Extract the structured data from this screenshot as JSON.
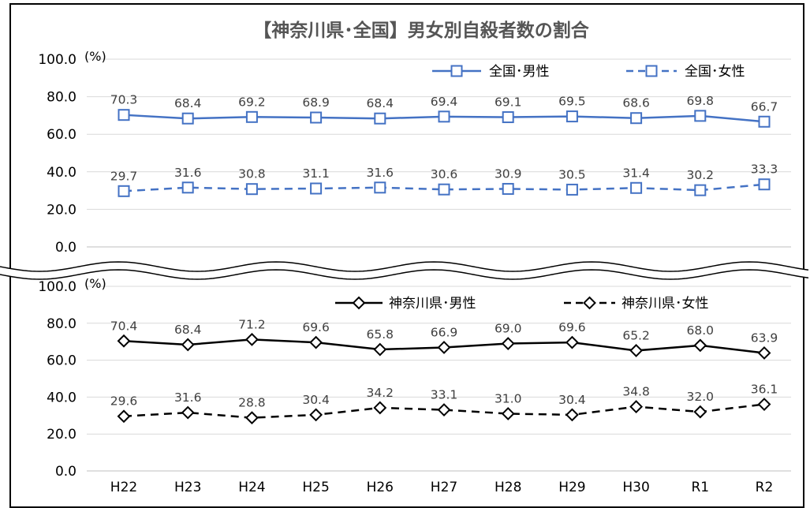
{
  "chart_data": {
    "type": "line",
    "title": "【神奈川県･全国】男女別自殺者数の割合",
    "categories": [
      "H22",
      "H23",
      "H24",
      "H25",
      "H26",
      "H27",
      "H28",
      "H29",
      "H30",
      "R1",
      "R2"
    ],
    "panels": [
      {
        "unit": "(%)",
        "ylim": [
          0,
          100
        ],
        "yticks": [
          "100.0",
          "80.0",
          "60.0",
          "40.0",
          "20.0",
          "0.0"
        ],
        "series": [
          {
            "name": "全国･男性",
            "color": "#4472C4",
            "dash": false,
            "marker": "square",
            "values": [
              70.3,
              68.4,
              69.2,
              68.9,
              68.4,
              69.4,
              69.1,
              69.5,
              68.6,
              69.8,
              66.7
            ],
            "labels": [
              "70.3",
              "68.4",
              "69.2",
              "68.9",
              "68.4",
              "69.4",
              "69.1",
              "69.5",
              "68.6",
              "69.8",
              "66.7"
            ]
          },
          {
            "name": "全国･女性",
            "color": "#4472C4",
            "dash": true,
            "marker": "square",
            "values": [
              29.7,
              31.6,
              30.8,
              31.1,
              31.6,
              30.6,
              30.9,
              30.5,
              31.4,
              30.2,
              33.3
            ],
            "labels": [
              "29.7",
              "31.6",
              "30.8",
              "31.1",
              "31.6",
              "30.6",
              "30.9",
              "30.5",
              "31.4",
              "30.2",
              "33.3"
            ]
          }
        ]
      },
      {
        "unit": "(%)",
        "ylim": [
          0,
          100
        ],
        "yticks": [
          "100.0",
          "80.0",
          "60.0",
          "40.0",
          "20.0",
          "0.0"
        ],
        "series": [
          {
            "name": "神奈川県･男性",
            "color": "#000000",
            "dash": false,
            "marker": "diamond",
            "values": [
              70.4,
              68.4,
              71.2,
              69.6,
              65.8,
              66.9,
              69.0,
              69.6,
              65.2,
              68.0,
              63.9
            ],
            "labels": [
              "70.4",
              "68.4",
              "71.2",
              "69.6",
              "65.8",
              "66.9",
              "69.0",
              "69.6",
              "65.2",
              "68.0",
              "63.9"
            ]
          },
          {
            "name": "神奈川県･女性",
            "color": "#000000",
            "dash": true,
            "marker": "diamond",
            "values": [
              29.6,
              31.6,
              28.8,
              30.4,
              34.2,
              33.1,
              31.0,
              30.4,
              34.8,
              32.0,
              36.1
            ],
            "labels": [
              "29.6",
              "31.6",
              "28.8",
              "30.4",
              "34.2",
              "33.1",
              "31.0",
              "30.4",
              "34.8",
              "32.0",
              "36.1"
            ]
          }
        ]
      }
    ]
  }
}
